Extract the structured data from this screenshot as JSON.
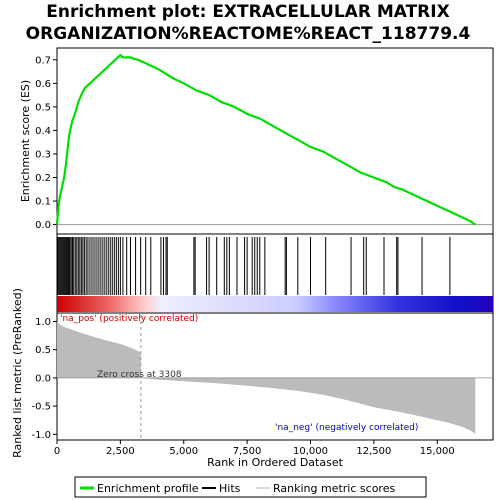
{
  "title_line1": "Enrichment plot: EXTRACELLULAR MATRIX",
  "title_line2": "ORGANIZATION%REACTOME%REACT_118779.4",
  "legend": {
    "items": [
      {
        "label": "Enrichment profile",
        "color": "#00dd00"
      },
      {
        "label": "Hits",
        "color": "#000000"
      },
      {
        "label": "Ranking metric scores",
        "color": "#bbbbbb"
      }
    ]
  },
  "annotations": {
    "pos": "'na_pos' (positively correlated)",
    "neg": "'na_neg' (negatively correlated)",
    "zero_cross": "Zero cross at 3308",
    "pos_color": "#cc0000",
    "neg_color": "#0000cc"
  },
  "chart_data": [
    {
      "type": "line",
      "name": "enrichment-profile",
      "title": "Enrichment plot: EXTRACELLULAR MATRIX ORGANIZATION%REACTOME%REACT_118779.4",
      "ylabel": "Enrichment score (ES)",
      "ylim": [
        -0.04,
        0.75
      ],
      "xlim": [
        0,
        17200
      ],
      "yticks": [
        0.0,
        0.1,
        0.2,
        0.3,
        0.4,
        0.5,
        0.6,
        0.7
      ],
      "ytick_labels": [
        "0.0",
        "0.1",
        "0.2",
        "0.3",
        "0.4",
        "0.5",
        "0.6",
        "0.7"
      ],
      "color": "#00dd00",
      "x": [
        0,
        60,
        120,
        200,
        280,
        360,
        420,
        480,
        540,
        600,
        680,
        760,
        840,
        920,
        1000,
        1100,
        1200,
        1300,
        1400,
        1500,
        1600,
        1700,
        1800,
        1900,
        2000,
        2100,
        2200,
        2300,
        2400,
        2500,
        2600,
        2700,
        2800,
        2900,
        3000,
        3200,
        3400,
        3600,
        3800,
        4000,
        4300,
        4600,
        5000,
        5500,
        6000,
        6500,
        7000,
        7500,
        8000,
        8500,
        9000,
        9500,
        10000,
        10500,
        11000,
        11500,
        12000,
        12500,
        13000,
        13300,
        13600,
        14000,
        14400,
        14800,
        15200,
        15600,
        16000,
        16300,
        16500
      ],
      "y": [
        0.0,
        0.08,
        0.12,
        0.16,
        0.2,
        0.26,
        0.32,
        0.38,
        0.41,
        0.44,
        0.46,
        0.49,
        0.52,
        0.54,
        0.56,
        0.58,
        0.59,
        0.6,
        0.61,
        0.62,
        0.63,
        0.64,
        0.65,
        0.66,
        0.67,
        0.68,
        0.69,
        0.7,
        0.71,
        0.72,
        0.71,
        0.71,
        0.71,
        0.71,
        0.705,
        0.7,
        0.69,
        0.68,
        0.67,
        0.66,
        0.64,
        0.62,
        0.6,
        0.57,
        0.55,
        0.52,
        0.5,
        0.47,
        0.45,
        0.42,
        0.39,
        0.36,
        0.33,
        0.31,
        0.28,
        0.25,
        0.22,
        0.2,
        0.18,
        0.16,
        0.15,
        0.13,
        0.11,
        0.09,
        0.07,
        0.05,
        0.03,
        0.015,
        0.0
      ]
    },
    {
      "type": "scatter",
      "name": "hits",
      "xlabel": "",
      "hit_positions": [
        30,
        70,
        110,
        150,
        190,
        230,
        270,
        310,
        350,
        390,
        430,
        470,
        510,
        560,
        610,
        660,
        720,
        780,
        840,
        900,
        960,
        1020,
        1080,
        1150,
        1220,
        1300,
        1380,
        1460,
        1540,
        1620,
        1700,
        1780,
        1860,
        1940,
        2020,
        2100,
        2180,
        2260,
        2340,
        2420,
        2500,
        2600,
        2750,
        2900,
        3100,
        3300,
        3500,
        3700,
        4100,
        4200,
        4300,
        4350,
        5400,
        5450,
        5900,
        6000,
        6300,
        6600,
        6700,
        6800,
        7100,
        7400,
        7500,
        7700,
        7800,
        7900,
        8000,
        8200,
        9000,
        9050,
        9500,
        10000,
        10600,
        11600,
        12100,
        12200,
        12900,
        13400,
        13450,
        14400,
        15500
      ]
    },
    {
      "type": "area",
      "name": "ranked-list-metric",
      "xlabel": "Rank in Ordered Dataset",
      "ylabel": "Ranked list metric (PreRanked)",
      "xlim": [
        0,
        17200
      ],
      "ylim": [
        -1.1,
        1.15
      ],
      "yticks": [
        1.0,
        0.5,
        0.0,
        -0.5,
        -1.0
      ],
      "ytick_labels": [
        "1.0",
        "0.5",
        "0.0",
        "-0.5",
        "-1.0"
      ],
      "xticks": [
        0,
        2500,
        5000,
        7500,
        10000,
        12500,
        15000
      ],
      "xtick_labels": [
        "0",
        "2,500",
        "5,000",
        "7,500",
        "10,000",
        "12,500",
        "15,000"
      ],
      "x": [
        0,
        100,
        300,
        600,
        1000,
        1500,
        2000,
        2500,
        3000,
        3300,
        3308,
        4000,
        5000,
        6500,
        7500,
        8500,
        9500,
        10500,
        11500,
        12500,
        13500,
        14500,
        15500,
        16000,
        16300,
        16500
      ],
      "y": [
        1.0,
        0.95,
        0.9,
        0.85,
        0.79,
        0.72,
        0.66,
        0.6,
        0.52,
        0.45,
        0.0,
        -0.03,
        -0.06,
        -0.1,
        -0.14,
        -0.18,
        -0.23,
        -0.3,
        -0.4,
        -0.52,
        -0.6,
        -0.7,
        -0.8,
        -0.87,
        -0.93,
        -0.99
      ],
      "zero_cross": 3308
    }
  ]
}
